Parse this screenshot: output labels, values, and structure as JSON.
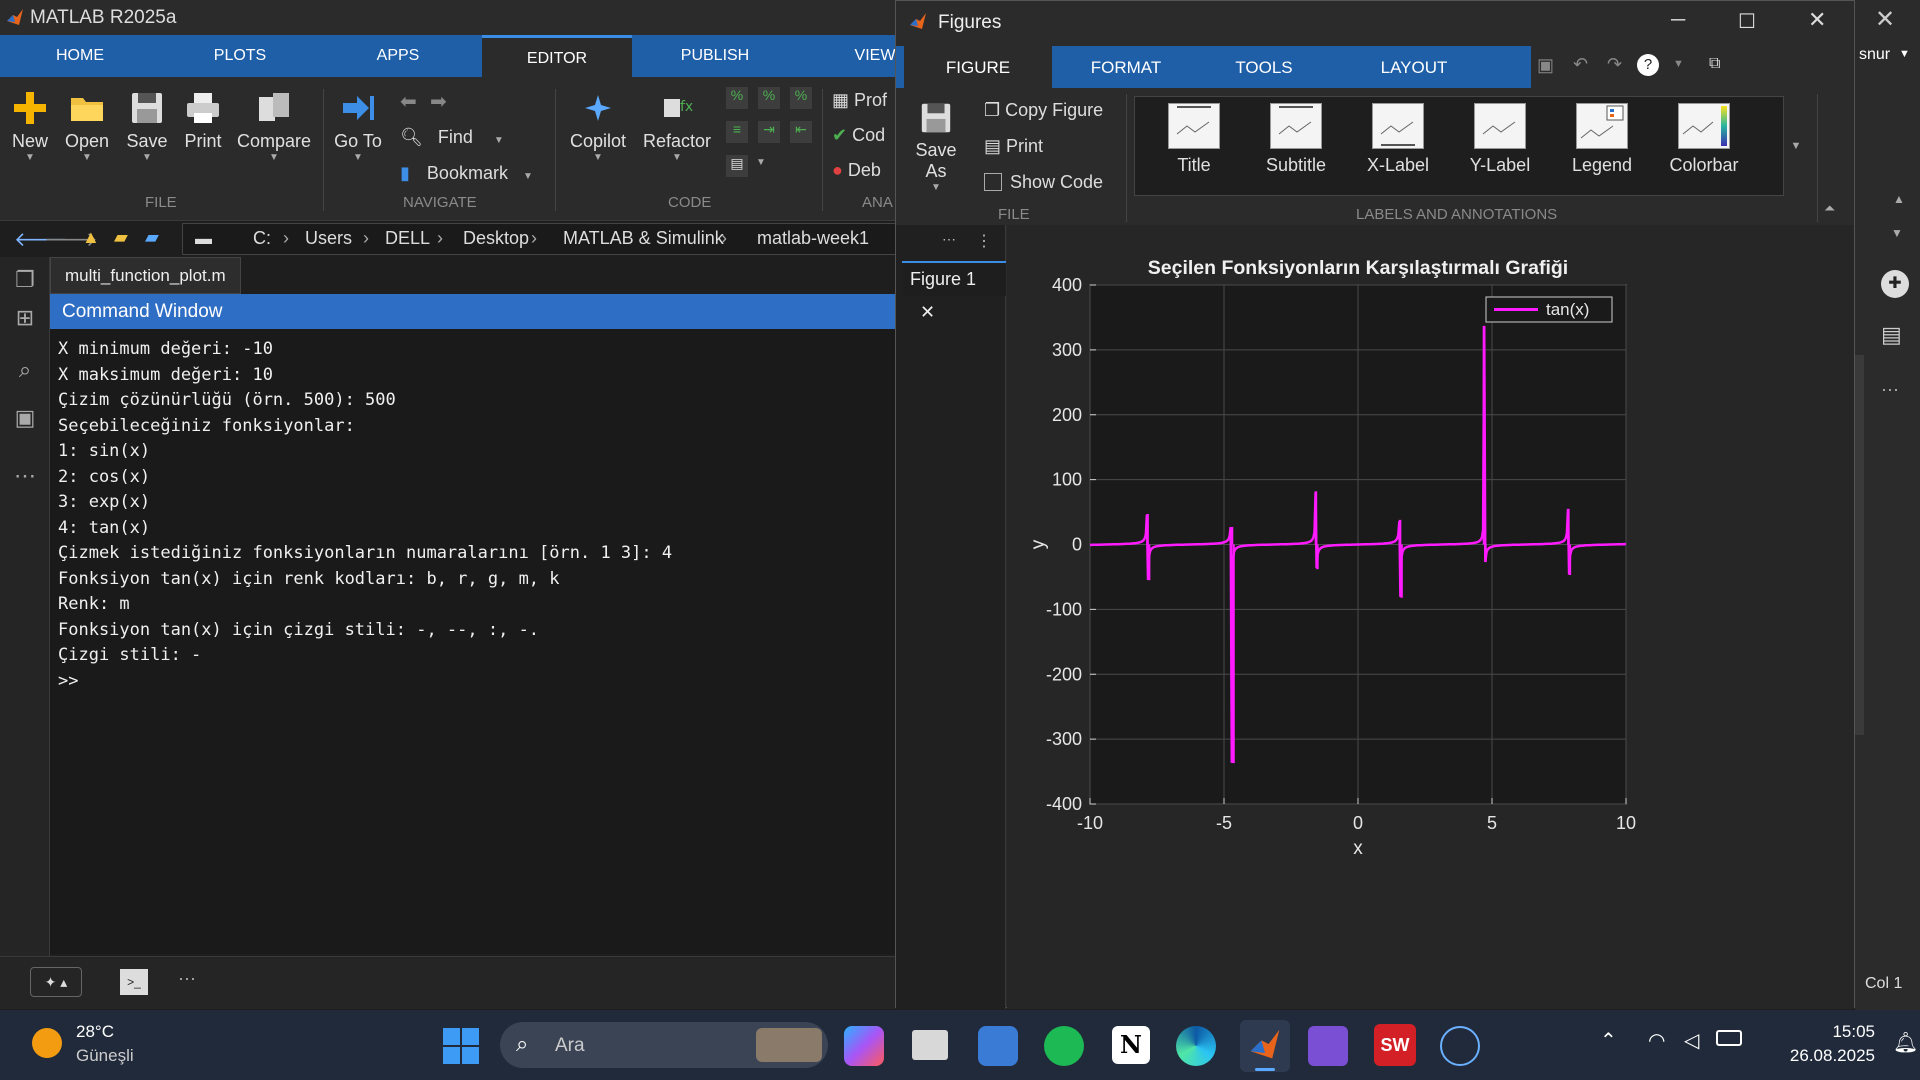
{
  "app": {
    "title": "MATLAB R2025a",
    "tabs": [
      "HOME",
      "PLOTS",
      "APPS",
      "EDITOR",
      "PUBLISH",
      "VIEW"
    ],
    "active_tab": "EDITOR",
    "user_short": "snur"
  },
  "ribbon": {
    "file": {
      "new": "New",
      "open": "Open",
      "save": "Save",
      "print": "Print",
      "compare": "Compare",
      "section": "FILE"
    },
    "navigate": {
      "goto": "Go To",
      "find": "Find",
      "bookmark": "Bookmark",
      "section": "NAVIGATE"
    },
    "code": {
      "copilot": "Copilot",
      "refactor": "Refactor",
      "section": "CODE"
    },
    "analyze": {
      "prof": "Prof",
      "cod": "Cod",
      "deb": "Deb",
      "section": "ANA"
    }
  },
  "address": {
    "crumbs": [
      "C:",
      "Users",
      "DELL",
      "Desktop",
      "MATLAB & Simulink",
      "matlab-week1"
    ]
  },
  "editor": {
    "file_tab": "multi_function_plot.m"
  },
  "command_window": {
    "title": "Command Window",
    "lines": [
      "X minimum değeri: -10",
      "X maksimum değeri: 10",
      "Çizim çözünürlüğü (örn. 500): 500",
      "Seçebileceğiniz fonksiyonlar:",
      "1: sin(x)",
      "2: cos(x)",
      "3: exp(x)",
      "4: tan(x)",
      "Çizmek istediğiniz fonksiyonların numaralarını [örn. 1 3]: 4",
      "Fonksiyon tan(x) için renk kodları: b, r, g, m, k",
      "Renk: m",
      "Fonksiyon tan(x) için çizgi stili: -, --, :, -.",
      "Çizgi stili: -",
      ">>"
    ]
  },
  "figures": {
    "title": "Figures",
    "tabs": [
      "FIGURE",
      "FORMAT",
      "TOOLS",
      "LAYOUT"
    ],
    "active_tab": "FIGURE",
    "save_as": "Save As",
    "copy_figure": "Copy Figure",
    "print": "Print",
    "show_code": "Show Code",
    "file_section": "FILE",
    "labels_section": "LABELS AND ANNOTATIONS",
    "gallery": [
      "Title",
      "Subtitle",
      "X-Label",
      "Y-Label",
      "Legend",
      "Colorbar"
    ],
    "figure_tab": "Figure 1"
  },
  "chart_data": {
    "type": "line",
    "title": "Seçilen Fonksiyonların Karşılaştırmalı Grafiği",
    "xlabel": "x",
    "ylabel": "y",
    "xlim": [
      -10,
      10
    ],
    "ylim": [
      -400,
      400
    ],
    "xticks": [
      -10,
      -5,
      0,
      5,
      10
    ],
    "yticks": [
      400,
      300,
      200,
      100,
      0,
      -100,
      -200,
      -300,
      -400
    ],
    "grid": true,
    "legend": "top-right",
    "series": [
      {
        "name": "tan(x)",
        "color": "#ff1aff",
        "function": "tan(x)",
        "samples": 500,
        "spikes": [
          {
            "x": -7.85,
            "top": 47,
            "bottom": -55
          },
          {
            "x": -4.7,
            "top": 27,
            "bottom": -337
          },
          {
            "x": -1.57,
            "top": 82,
            "bottom": -38
          },
          {
            "x": 1.57,
            "top": 38,
            "bottom": -82
          },
          {
            "x": 4.7,
            "top": 337,
            "bottom": -27
          },
          {
            "x": 7.85,
            "top": 55,
            "bottom": -47
          }
        ]
      }
    ]
  },
  "status": {
    "col": "Col 1"
  },
  "taskbar": {
    "temperature": "28°C",
    "weather": "Güneşli",
    "search_placeholder": "Ara",
    "time": "15:05",
    "date": "26.08.2025"
  },
  "colors": {
    "accent": "#1f5fa8",
    "plot_line": "#ff1aff",
    "panel_bg": "#2b2b2b"
  }
}
